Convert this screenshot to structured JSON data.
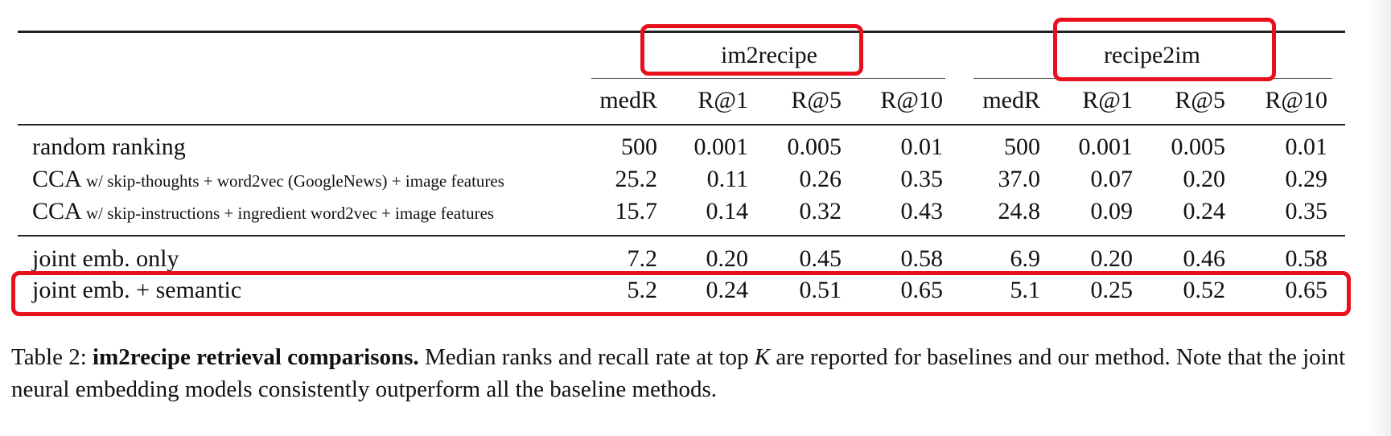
{
  "table": {
    "groups": [
      "im2recipe",
      "recipe2im"
    ],
    "columns": [
      "medR",
      "R@1",
      "R@5",
      "R@10",
      "medR",
      "R@1",
      "R@5",
      "R@10"
    ],
    "rows": [
      {
        "method_big": "random ranking",
        "method_small": "",
        "values": [
          "500",
          "0.001",
          "0.005",
          "0.01",
          "500",
          "0.001",
          "0.005",
          "0.01"
        ]
      },
      {
        "method_big": "CCA",
        "method_small": " w/ skip-thoughts + word2vec (GoogleNews) + image features",
        "values": [
          "25.2",
          "0.11",
          "0.26",
          "0.35",
          "37.0",
          "0.07",
          "0.20",
          "0.29"
        ]
      },
      {
        "method_big": "CCA",
        "method_small": " w/ skip-instructions + ingredient word2vec + image features",
        "values": [
          "15.7",
          "0.14",
          "0.32",
          "0.43",
          "24.8",
          "0.09",
          "0.24",
          "0.35"
        ]
      },
      {
        "method_big": "joint emb. only",
        "method_small": "",
        "values": [
          "7.2",
          "0.20",
          "0.45",
          "0.58",
          "6.9",
          "0.20",
          "0.46",
          "0.58"
        ]
      },
      {
        "method_big": "joint emb. + semantic",
        "method_small": "",
        "values": [
          "5.2",
          "0.24",
          "0.51",
          "0.65",
          "5.1",
          "0.25",
          "0.52",
          "0.65"
        ]
      }
    ]
  },
  "caption": {
    "prefix": "Table 2: ",
    "bold": "im2recipe retrieval comparisons.",
    "text1": " Median ranks and recall rate at top ",
    "var": "K",
    "text2": " are reported for baselines and our method. Note that the joint neural embedding models consistently outperform all the baseline methods."
  },
  "highlight_color": "#e8101d"
}
